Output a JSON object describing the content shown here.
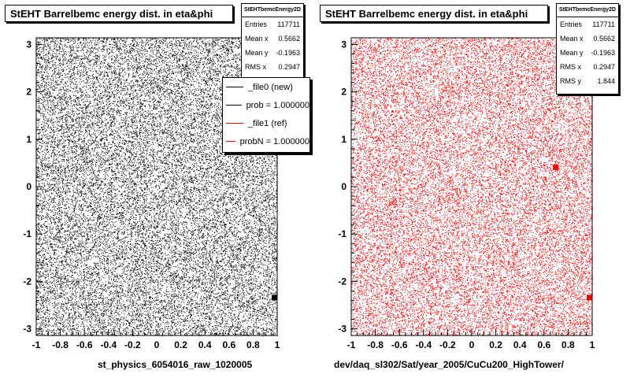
{
  "panels": [
    {
      "title": "StEHT Barrelbemc energy dist. in eta&phi",
      "stats": {
        "name": "StEHTbemcEnergy2D",
        "rows": [
          {
            "label": "Entries",
            "value": "117711"
          },
          {
            "label": "Mean x",
            "value": "0.5662"
          },
          {
            "label": "Mean y",
            "value": "-0.1963"
          },
          {
            "label": "RMS x",
            "value": "0.2947"
          }
        ]
      },
      "xlabel": "st_physics_6054016_raw_1020005",
      "color": "#000000"
    },
    {
      "title": "StEHT Barrelbemc energy dist. in eta&phi",
      "stats": {
        "name": "StEHTbemcEnergy2D",
        "rows": [
          {
            "label": "Entries",
            "value": "117711"
          },
          {
            "label": "Mean x",
            "value": "0.5662"
          },
          {
            "label": "Mean y",
            "value": "-0.1963"
          },
          {
            "label": "RMS x",
            "value": "0.2947"
          },
          {
            "label": "RMS y",
            "value": "1.844"
          }
        ]
      },
      "xlabel": "dev/daq_sl302/Sat/year_2005/CuCu200_HighTower/",
      "color": "#ff0000"
    }
  ],
  "legend": [
    {
      "label": "_file0 (new)",
      "color": "#000000"
    },
    {
      "label": "prob = 1.000000",
      "color": "#000000"
    },
    {
      "label": "_file1 (ref)",
      "color": "#ff0000"
    },
    {
      "label": "probN = 1.000000",
      "color": "#ff0000"
    }
  ],
  "chart_data": [
    {
      "type": "scatter",
      "title": "StEHT Barrelbemc energy dist. in eta&phi",
      "xlabel": "st_physics_6054016_raw_1020005",
      "ylabel": "",
      "xlim": [
        -1,
        1
      ],
      "ylim": [
        -3.14,
        3.14
      ],
      "xticks": [
        "-1",
        "-0.8",
        "-0.6",
        "-0.4",
        "-0.2",
        "0",
        "0.2",
        "0.4",
        "0.6",
        "0.8",
        "1"
      ],
      "yticks": [
        "-3",
        "-2",
        "-1",
        "0",
        "1",
        "2",
        "3"
      ],
      "color": "#000000",
      "description_stats": {
        "entries": 117711,
        "mean_x": 0.5662,
        "mean_y": -0.1963,
        "rms_x": 0.2947
      },
      "hotspots": [
        {
          "x": 0.98,
          "y": -2.35
        }
      ]
    },
    {
      "type": "scatter",
      "title": "StEHT Barrelbemc energy dist. in eta&phi",
      "xlabel": "dev/daq_sl302/Sat/year_2005/CuCu200_HighTower/",
      "ylabel": "",
      "xlim": [
        -1,
        1
      ],
      "ylim": [
        -3.14,
        3.14
      ],
      "xticks": [
        "-1",
        "-0.8",
        "-0.6",
        "-0.4",
        "-0.2",
        "0",
        "0.2",
        "0.4",
        "0.6",
        "0.8",
        "1"
      ],
      "yticks": [
        "-3",
        "-2",
        "-1",
        "0",
        "1",
        "2",
        "3"
      ],
      "color": "#ff0000",
      "description_stats": {
        "entries": 117711,
        "mean_x": 0.5662,
        "mean_y": -0.1963,
        "rms_x": 0.2947,
        "rms_y": 1.844
      },
      "hotspots": [
        {
          "x": 0.98,
          "y": -2.35
        },
        {
          "x": 0.7,
          "y": 0.4
        }
      ]
    }
  ]
}
